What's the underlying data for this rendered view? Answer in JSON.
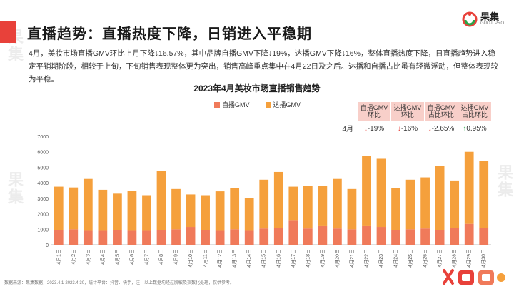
{
  "page": {
    "title": "直播趋势：直播热度下降，日销进入平稳期",
    "intro": "4月，美妆市场直播GMV环比上月下降↓16.57%，其中品牌自播GMV下降↓19%，达播GMV下降↓16%，整体直播热度下降，日直播趋势进入稳定平销期阶段，相较于上旬，下旬销售表现整体更为突出，销售高峰重点集中在4月22日及之后。达播和自播占比虽有轻微浮动，但整体表现较为平稳。",
    "footnote": "数据来源：果集数据，2023.4.1-2023.4.30，统计平台：抖音、快手，注：以上数据均经过脱敏及指数化处理，仅供参考。",
    "brand_cn": "果集",
    "brand_en": "GUOJI.PRO",
    "watermark": "果集"
  },
  "colors": {
    "accent": "#e8413a",
    "self_broadcast": "#f07a5a",
    "influencer": "#f5a03c"
  },
  "stats_table": {
    "headers": [
      "自播GMV\n环比",
      "达播GMV\n环比",
      "自播GMV\n占比环比",
      "达播GMV\n占比环比"
    ],
    "row_label": "4月",
    "values": [
      "↓-19%",
      "↓-16%",
      "↓-2.65%",
      "↑0.95%"
    ],
    "directions": [
      "down",
      "down",
      "down",
      "up"
    ]
  },
  "chart_data": {
    "type": "bar",
    "stacked": true,
    "title": "2023年4月美妆市场直播销售趋势",
    "legend_position": "top",
    "xlabel": "",
    "ylabel": "",
    "ylim": [
      0,
      7000
    ],
    "yticks": [
      0,
      1000,
      2000,
      3000,
      4000,
      5000,
      6000,
      7000
    ],
    "grid": false,
    "categories": [
      "4月1日",
      "4月2日",
      "4月3日",
      "4月4日",
      "4月5日",
      "4月6日",
      "4月7日",
      "4月8日",
      "4月9日",
      "4月10日",
      "4月11日",
      "4月12日",
      "4月13日",
      "4月14日",
      "4月15日",
      "4月16日",
      "4月17日",
      "4月18日",
      "4月19日",
      "4月20日",
      "4月21日",
      "4月22日",
      "4月23日",
      "4月24日",
      "4月25日",
      "4月26日",
      "4月27日",
      "4月28日",
      "4月29日",
      "4月30日"
    ],
    "series": [
      {
        "name": "自播GMV",
        "values": [
          950,
          1000,
          900,
          900,
          950,
          900,
          900,
          950,
          1000,
          1150,
          950,
          900,
          1000,
          900,
          1050,
          1100,
          1550,
          1050,
          1200,
          1050,
          1000,
          1200,
          1150,
          950,
          1000,
          1050,
          950,
          1100,
          1350,
          1100
        ]
      },
      {
        "name": "达播GMV",
        "values": [
          2800,
          2700,
          3350,
          2650,
          2350,
          2600,
          2300,
          3800,
          2600,
          2100,
          2250,
          2550,
          2650,
          2100,
          3150,
          3600,
          2200,
          2750,
          2600,
          3200,
          2600,
          4550,
          4400,
          2700,
          3200,
          3300,
          4150,
          3050,
          4650,
          4300
        ]
      }
    ]
  }
}
